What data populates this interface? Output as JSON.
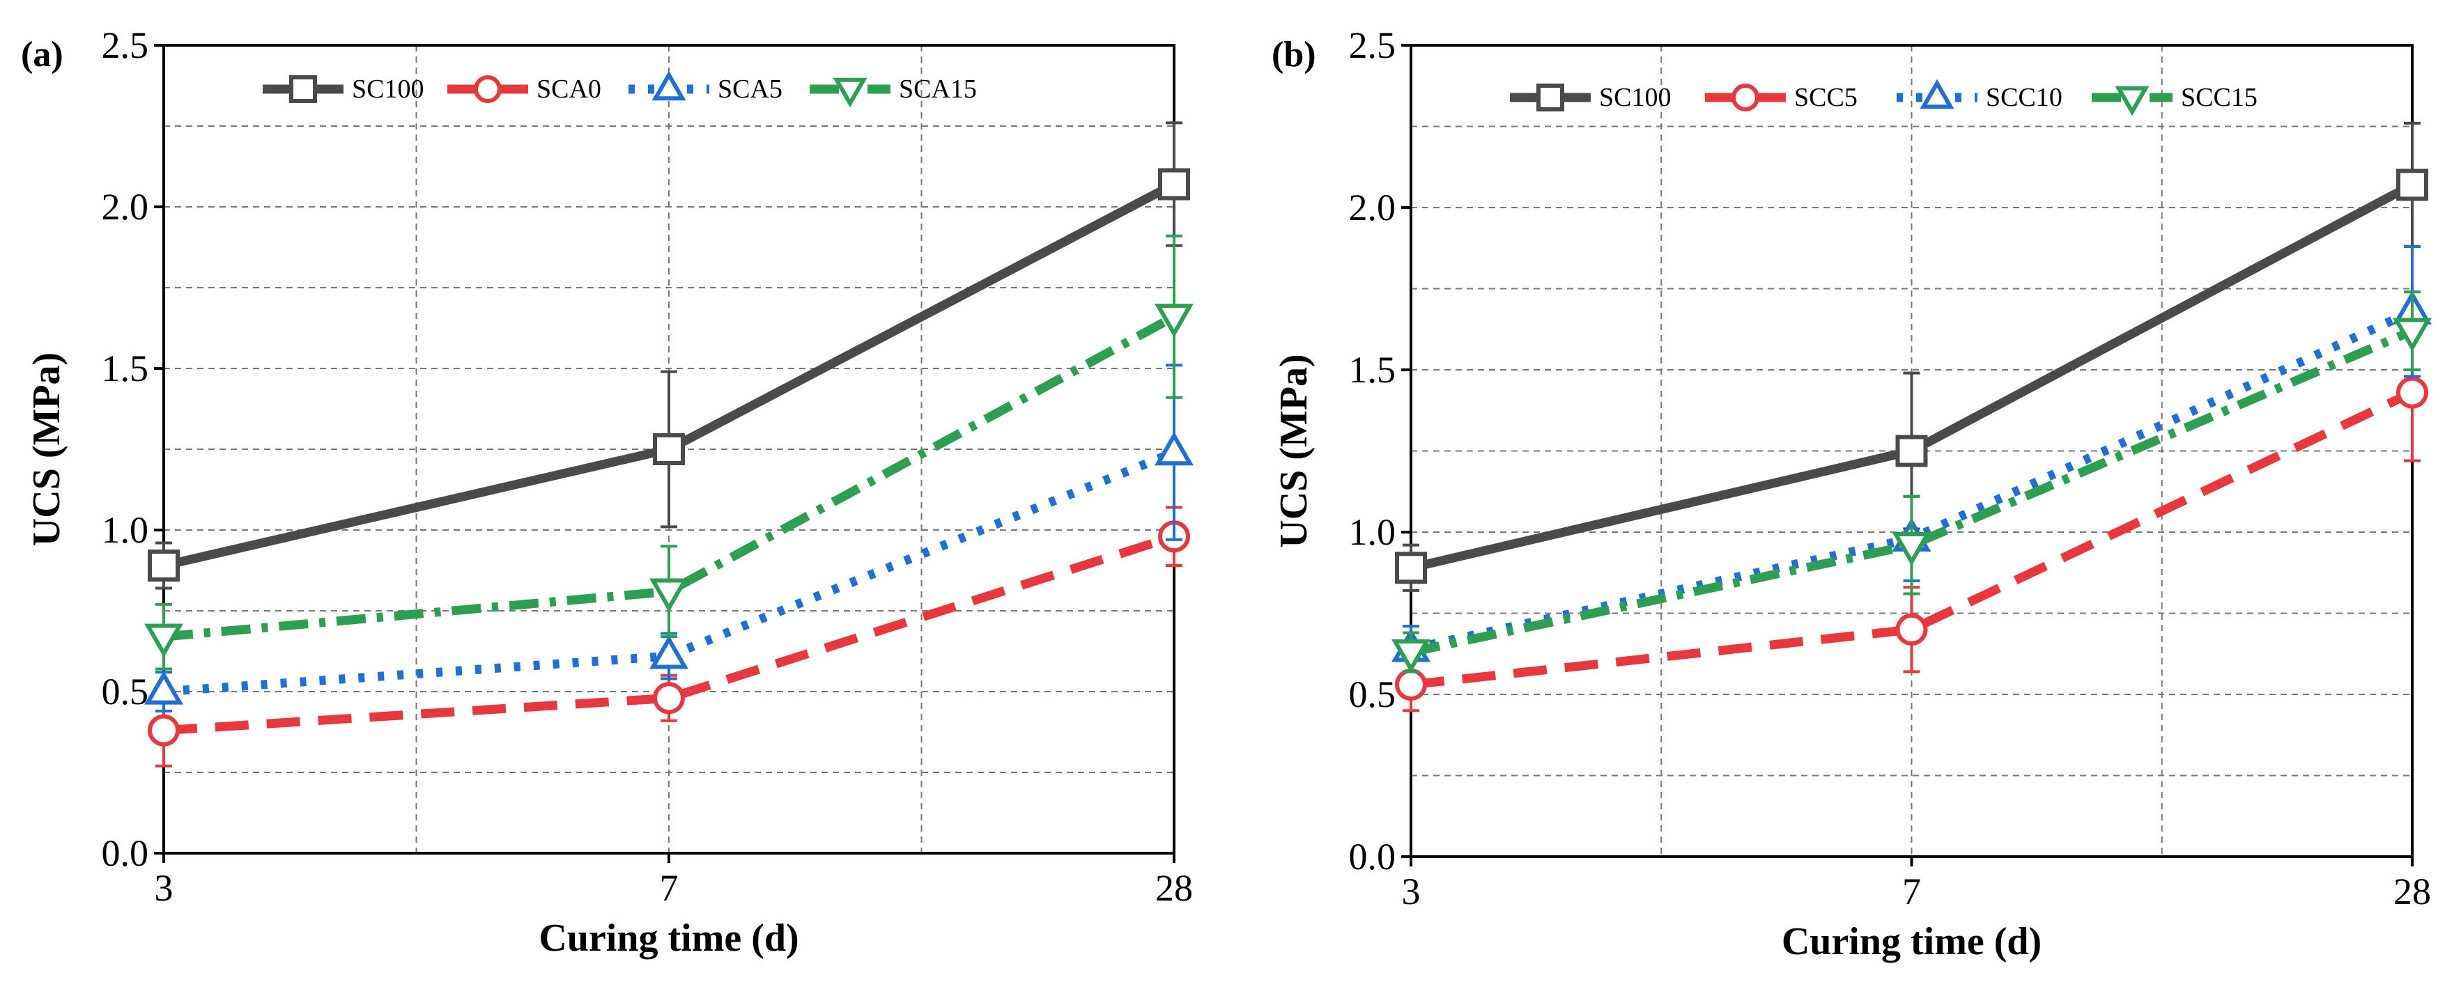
{
  "chart_data": [
    {
      "type": "line",
      "panel_label": "(a)",
      "xlabel": "Curing time (d)",
      "ylabel": "UCS (MPa)",
      "categories": [
        "3",
        "7",
        "28"
      ],
      "ylim": [
        0,
        2.5
      ],
      "yticks": [
        "0.0",
        "0.5",
        "1.0",
        "1.5",
        "2.0",
        "2.5"
      ],
      "grid": true,
      "legend_position": "top",
      "series": [
        {
          "name": "SC100",
          "values": [
            0.89,
            1.25,
            2.07
          ],
          "errors": [
            0.07,
            0.24,
            0.19
          ],
          "color": "#4a4a4a",
          "marker": "square",
          "dash": "solid"
        },
        {
          "name": "SCA0",
          "values": [
            0.38,
            0.48,
            0.98
          ],
          "errors": [
            0.11,
            0.07,
            0.09
          ],
          "color": "#e8383d",
          "marker": "circle",
          "dash": "dash"
        },
        {
          "name": "SCA5",
          "values": [
            0.5,
            0.61,
            1.24
          ],
          "errors": [
            0.06,
            0.07,
            0.27
          ],
          "color": "#1f6fd4",
          "marker": "triangle-up",
          "dash": "dot"
        },
        {
          "name": "SCA15",
          "values": [
            0.67,
            0.81,
            1.66
          ],
          "errors": [
            0.1,
            0.14,
            0.25
          ],
          "color": "#2e9e52",
          "marker": "triangle-down",
          "dash": "dashdot"
        }
      ]
    },
    {
      "type": "line",
      "panel_label": "(b)",
      "xlabel": "Curing time (d)",
      "ylabel": "UCS (MPa)",
      "categories": [
        "3",
        "7",
        "28"
      ],
      "ylim": [
        0,
        2.5
      ],
      "yticks": [
        "0.0",
        "0.5",
        "1.0",
        "1.5",
        "2.0",
        "2.5"
      ],
      "grid": true,
      "legend_position": "top",
      "series": [
        {
          "name": "SC100",
          "values": [
            0.89,
            1.25,
            2.07
          ],
          "errors": [
            0.07,
            0.24,
            0.19
          ],
          "color": "#4a4a4a",
          "marker": "square",
          "dash": "solid"
        },
        {
          "name": "SCC5",
          "values": [
            0.53,
            0.7,
            1.43
          ],
          "errors": [
            0.08,
            0.13,
            0.21
          ],
          "color": "#e8383d",
          "marker": "circle",
          "dash": "dash"
        },
        {
          "name": "SCC10",
          "values": [
            0.64,
            0.98,
            1.68
          ],
          "errors": [
            0.07,
            0.13,
            0.2
          ],
          "color": "#1f6fd4",
          "marker": "triangle-up",
          "dash": "dot"
        },
        {
          "name": "SCC15",
          "values": [
            0.63,
            0.96,
            1.62
          ],
          "errors": [
            0.06,
            0.15,
            0.12
          ],
          "color": "#2e9e52",
          "marker": "triangle-down",
          "dash": "dashdot"
        }
      ]
    }
  ]
}
